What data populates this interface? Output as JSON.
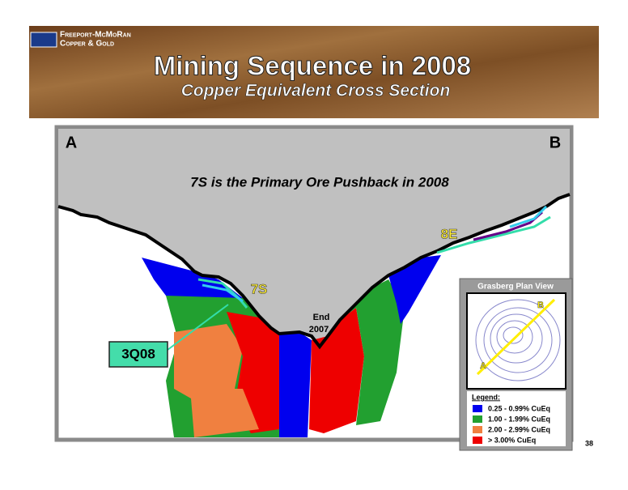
{
  "header": {
    "logo_line1": "Freeport-McMoRan",
    "logo_line2": "Copper & Gold",
    "title": "Mining Sequence in 2008",
    "subtitle": "Copper Equivalent Cross Section"
  },
  "section": {
    "left_label": "A",
    "right_label": "B",
    "caption": "7S is the Primary Ore Pushback in 2008",
    "labels": {
      "east": "8E",
      "south": "7S",
      "end_line1": "End",
      "end_line2": "2007",
      "quarter": "3Q08"
    }
  },
  "inset": {
    "title": "Grasberg Plan View",
    "point_a": "A",
    "point_b": "B"
  },
  "legend": {
    "title": "Legend:",
    "items": [
      "0.25 - 0.99% CuEq",
      "1.00 - 1.99% CuEq",
      "2.00 - 2.99% CuEq",
      "> 3.00% CuEq"
    ]
  },
  "page_number": "38"
}
